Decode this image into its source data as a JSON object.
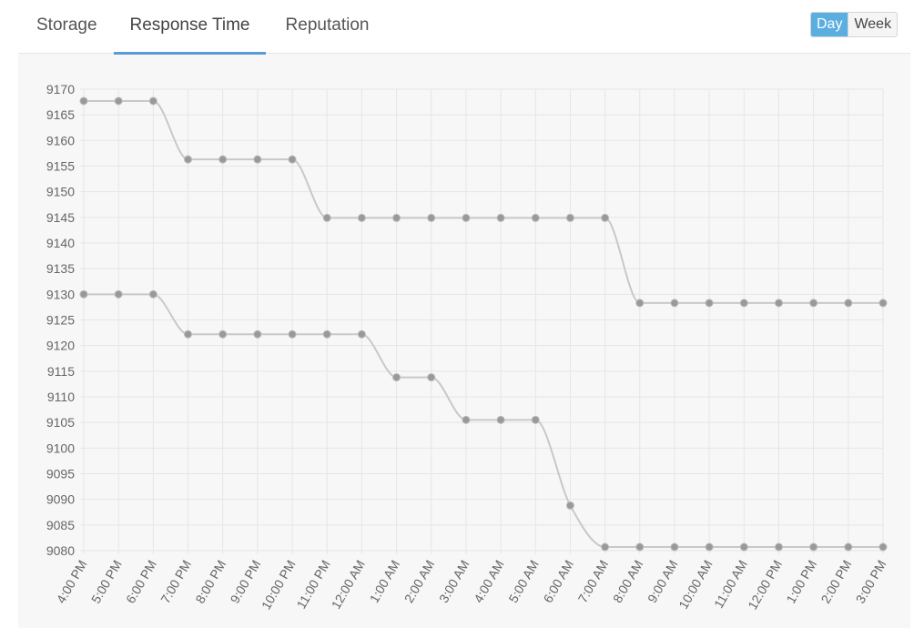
{
  "tabs": [
    {
      "label": "Storage",
      "active": false
    },
    {
      "label": "Response Time",
      "active": true
    },
    {
      "label": "Reputation",
      "active": false
    }
  ],
  "range_toggle": {
    "options": [
      "Day",
      "Week"
    ],
    "selected": "Day"
  },
  "colors": {
    "accent": "#5b9bd5",
    "toggle_active": "#5aaee0",
    "series_line": "#c8c8c8",
    "point": "#999999",
    "grid": "#e6e6e6"
  },
  "chart_data": {
    "type": "line",
    "title": "",
    "xlabel": "",
    "ylabel": "",
    "categories": [
      "4:00 PM",
      "5:00 PM",
      "6:00 PM",
      "7:00 PM",
      "8:00 PM",
      "9:00 PM",
      "10:00 PM",
      "11:00 PM",
      "12:00 AM",
      "1:00 AM",
      "2:00 AM",
      "3:00 AM",
      "4:00 AM",
      "5:00 AM",
      "6:00 AM",
      "7:00 AM",
      "8:00 AM",
      "9:00 AM",
      "10:00 AM",
      "11:00 AM",
      "12:00 PM",
      "1:00 PM",
      "2:00 PM",
      "3:00 PM"
    ],
    "ylim": [
      9080,
      9170
    ],
    "yticks": [
      9170,
      9165,
      9160,
      9155,
      9150,
      9145,
      9140,
      9135,
      9130,
      9125,
      9120,
      9115,
      9110,
      9105,
      9100,
      9095,
      9090,
      9085,
      9080
    ],
    "grid": true,
    "legend": "none",
    "smooth": true,
    "series": [
      {
        "values": [
          9167.7,
          9167.7,
          9167.7,
          9156.3,
          9156.3,
          9156.3,
          9156.3,
          9144.9,
          9144.9,
          9144.9,
          9144.9,
          9144.9,
          9144.9,
          9144.9,
          9144.9,
          9144.9,
          9128.3,
          9128.3,
          9128.3,
          9128.3,
          9128.3,
          9128.3,
          9128.3,
          9128.3
        ]
      },
      {
        "values": [
          9130.0,
          9130.0,
          9130.0,
          9122.2,
          9122.2,
          9122.2,
          9122.2,
          9122.2,
          9122.2,
          9113.8,
          9113.8,
          9105.5,
          9105.5,
          9105.5,
          9088.8,
          9080.7,
          9080.7,
          9080.7,
          9080.7,
          9080.7,
          9080.7,
          9080.7,
          9080.7,
          9080.7
        ]
      }
    ]
  }
}
